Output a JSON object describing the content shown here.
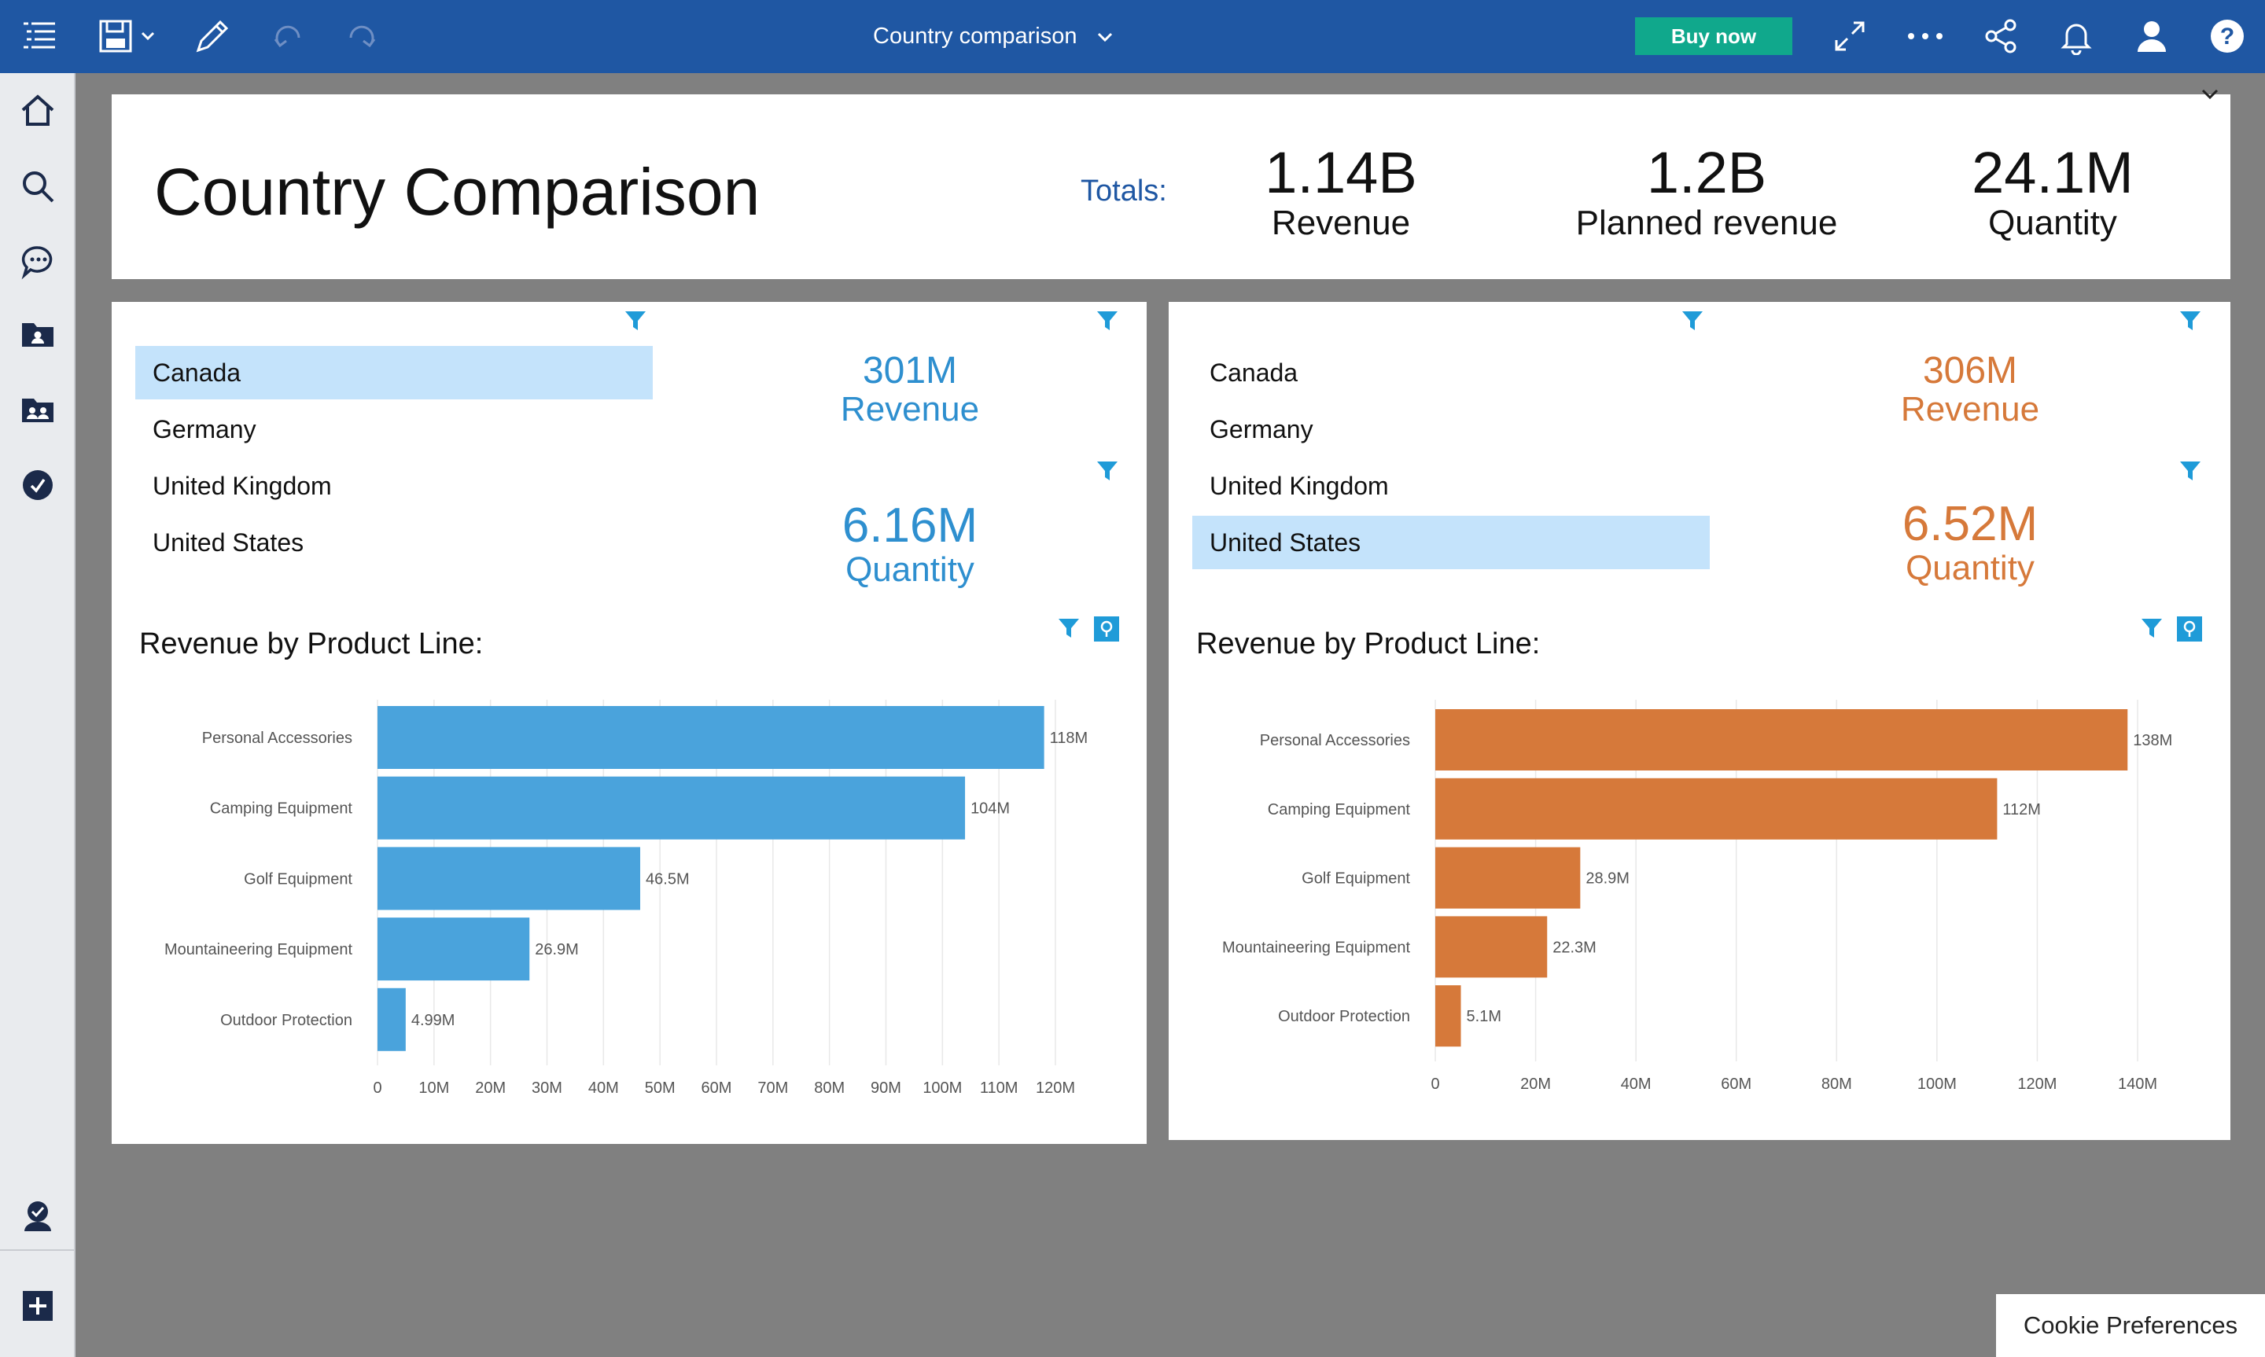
{
  "topbar": {
    "title": "Country comparison",
    "buy_label": "Buy now"
  },
  "header": {
    "title": "Country Comparison",
    "totals_label": "Totals:",
    "kpis": [
      {
        "value": "1.14B",
        "label": "Revenue"
      },
      {
        "value": "1.2B",
        "label": "Planned revenue"
      },
      {
        "value": "24.1M",
        "label": "Quantity"
      }
    ]
  },
  "left_panel": {
    "countries": [
      "Canada",
      "Germany",
      "United Kingdom",
      "United States"
    ],
    "selected_country": "Canada",
    "revenue": {
      "value": "301M",
      "label": "Revenue"
    },
    "quantity": {
      "value": "6.16M",
      "label": "Quantity"
    },
    "chart_title": "Revenue by Product Line:",
    "color": "#4aa3dc"
  },
  "right_panel": {
    "countries": [
      "Canada",
      "Germany",
      "United Kingdom",
      "United States"
    ],
    "selected_country": "United States",
    "revenue": {
      "value": "306M",
      "label": "Revenue"
    },
    "quantity": {
      "value": "6.52M",
      "label": "Quantity"
    },
    "chart_title": "Revenue by Product Line:",
    "color": "#d6793a"
  },
  "chart_data": [
    {
      "type": "bar",
      "orientation": "horizontal",
      "title": "Revenue by Product Line:",
      "categories": [
        "Personal Accessories",
        "Camping Equipment",
        "Golf Equipment",
        "Mountaineering Equipment",
        "Outdoor Protection"
      ],
      "values": [
        118,
        104,
        46.5,
        26.9,
        4.99
      ],
      "data_labels": [
        "118M",
        "104M",
        "46.5M",
        "26.9M",
        "4.99M"
      ],
      "xlim": [
        0,
        120
      ],
      "xticks": [
        "0",
        "10M",
        "20M",
        "30M",
        "40M",
        "50M",
        "60M",
        "70M",
        "80M",
        "90M",
        "100M",
        "110M",
        "120M"
      ],
      "grid": true,
      "color": "#4aa3dc"
    },
    {
      "type": "bar",
      "orientation": "horizontal",
      "title": "Revenue by Product Line:",
      "categories": [
        "Personal Accessories",
        "Camping Equipment",
        "Golf Equipment",
        "Mountaineering Equipment",
        "Outdoor Protection"
      ],
      "values": [
        138,
        112,
        28.9,
        22.3,
        5.1
      ],
      "data_labels": [
        "138M",
        "112M",
        "28.9M",
        "22.3M",
        "5.1M"
      ],
      "xlim": [
        0,
        140
      ],
      "xticks": [
        "0",
        "20M",
        "40M",
        "60M",
        "80M",
        "100M",
        "120M",
        "140M"
      ],
      "grid": true,
      "color": "#d6793a"
    }
  ],
  "cookie_label": "Cookie Preferences",
  "colors": {
    "topbar": "#1f57a3",
    "accent_blue": "#2e8fcf",
    "accent_orange": "#d6793a",
    "selection": "#c4e3fb",
    "buy": "#10a88c"
  }
}
